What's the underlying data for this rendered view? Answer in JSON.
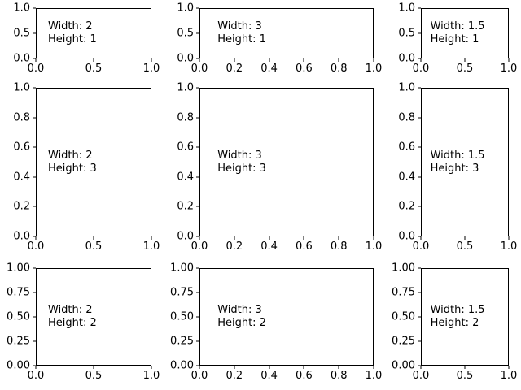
{
  "figure": {
    "background_color": "#ffffff",
    "axes_edge_color": "#000000",
    "text_color": "#000000"
  },
  "chart_data": {
    "type": "subplot-grid",
    "rows": 3,
    "cols": 3,
    "width_ratios": [
      2,
      3,
      1.5
    ],
    "height_ratios": [
      1,
      3,
      2
    ],
    "subplots": [
      {
        "name": "r1c1",
        "width_ratio": 2,
        "height_ratio": 1,
        "annotation_lines": [
          "Width: 2",
          "Height: 1"
        ],
        "xlim": [
          0.0,
          1.0
        ],
        "ylim": [
          0.0,
          1.0
        ],
        "x_tick_labels": [
          "0.0",
          "0.5",
          "1.0"
        ],
        "y_tick_labels": [
          "1.0",
          "0.5",
          "0.0"
        ]
      },
      {
        "name": "r1c2",
        "width_ratio": 3,
        "height_ratio": 1,
        "annotation_lines": [
          "Width: 3",
          "Height: 1"
        ],
        "xlim": [
          0.0,
          1.0
        ],
        "ylim": [
          0.0,
          1.0
        ],
        "x_tick_labels": [
          "0.0",
          "0.2",
          "0.4",
          "0.6",
          "0.8",
          "1.0"
        ],
        "y_tick_labels": [
          "1.0",
          "0.5",
          "0.0"
        ]
      },
      {
        "name": "r1c3",
        "width_ratio": 1.5,
        "height_ratio": 1,
        "annotation_lines": [
          "Width: 1.5",
          "Height: 1"
        ],
        "xlim": [
          0.0,
          1.0
        ],
        "ylim": [
          0.0,
          1.0
        ],
        "x_tick_labels": [
          "0.0",
          "0.5",
          "1.0"
        ],
        "y_tick_labels": [
          "1.0",
          "0.5",
          "0.0"
        ]
      },
      {
        "name": "r2c1",
        "width_ratio": 2,
        "height_ratio": 3,
        "annotation_lines": [
          "Width: 2",
          "Height: 3"
        ],
        "xlim": [
          0.0,
          1.0
        ],
        "ylim": [
          0.0,
          1.0
        ],
        "x_tick_labels": [
          "0.0",
          "0.5",
          "1.0"
        ],
        "y_tick_labels": [
          "1.0",
          "0.8",
          "0.6",
          "0.4",
          "0.2",
          "0.0"
        ]
      },
      {
        "name": "r2c2",
        "width_ratio": 3,
        "height_ratio": 3,
        "annotation_lines": [
          "Width: 3",
          "Height: 3"
        ],
        "xlim": [
          0.0,
          1.0
        ],
        "ylim": [
          0.0,
          1.0
        ],
        "x_tick_labels": [
          "0.0",
          "0.2",
          "0.4",
          "0.6",
          "0.8",
          "1.0"
        ],
        "y_tick_labels": [
          "1.0",
          "0.8",
          "0.6",
          "0.4",
          "0.2",
          "0.0"
        ]
      },
      {
        "name": "r2c3",
        "width_ratio": 1.5,
        "height_ratio": 3,
        "annotation_lines": [
          "Width: 1.5",
          "Height: 3"
        ],
        "xlim": [
          0.0,
          1.0
        ],
        "ylim": [
          0.0,
          1.0
        ],
        "x_tick_labels": [
          "0.0",
          "0.5",
          "1.0"
        ],
        "y_tick_labels": [
          "1.0",
          "0.8",
          "0.6",
          "0.4",
          "0.2",
          "0.0"
        ]
      },
      {
        "name": "r3c1",
        "width_ratio": 2,
        "height_ratio": 2,
        "annotation_lines": [
          "Width: 2",
          "Height: 2"
        ],
        "xlim": [
          0.0,
          1.0
        ],
        "ylim": [
          0.0,
          1.0
        ],
        "x_tick_labels": [
          "0.0",
          "0.5",
          "1.0"
        ],
        "y_tick_labels": [
          "1.00",
          "0.75",
          "0.50",
          "0.25",
          "0.00"
        ]
      },
      {
        "name": "r3c2",
        "width_ratio": 3,
        "height_ratio": 2,
        "annotation_lines": [
          "Width: 3",
          "Height: 2"
        ],
        "xlim": [
          0.0,
          1.0
        ],
        "ylim": [
          0.0,
          1.0
        ],
        "x_tick_labels": [
          "0.0",
          "0.2",
          "0.4",
          "0.6",
          "0.8",
          "1.0"
        ],
        "y_tick_labels": [
          "1.00",
          "0.75",
          "0.50",
          "0.25",
          "0.00"
        ]
      },
      {
        "name": "r3c3",
        "width_ratio": 1.5,
        "height_ratio": 2,
        "annotation_lines": [
          "Width: 1.5",
          "Height: 2"
        ],
        "xlim": [
          0.0,
          1.0
        ],
        "ylim": [
          0.0,
          1.0
        ],
        "x_tick_labels": [
          "0.0",
          "0.5",
          "1.0"
        ],
        "y_tick_labels": [
          "1.00",
          "0.75",
          "0.50",
          "0.25",
          "0.00"
        ]
      }
    ]
  }
}
